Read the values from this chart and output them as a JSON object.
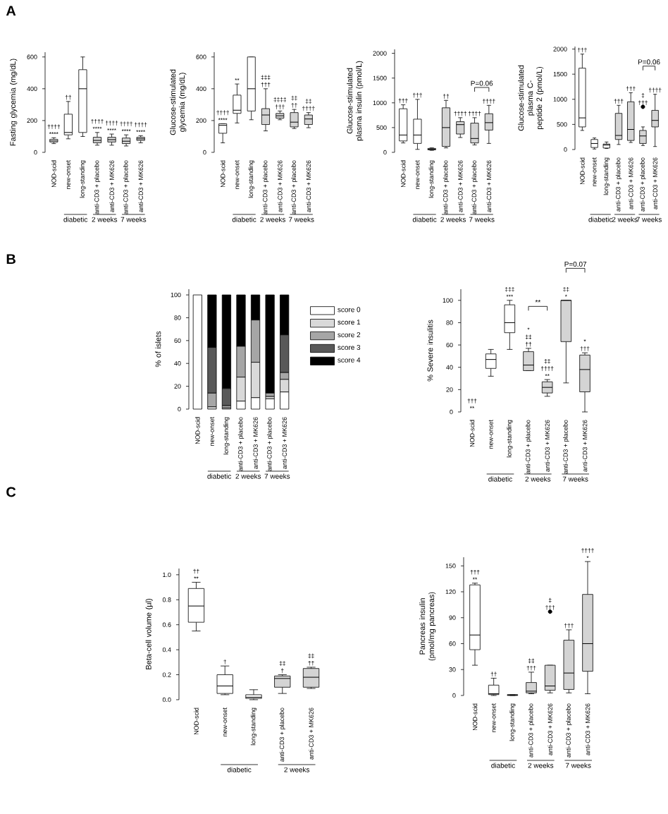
{
  "chart_data": [
    {
      "type": "box",
      "ylabel": "Fasting glycemia (mg/dL)",
      "categories": [
        "NOD-scid",
        "new-onset",
        "long-standing",
        "anti-CD3 + placebo",
        "anti-CD3 + MK626",
        "anti-CD3 + placebo",
        "anti-CD3 + MK626"
      ],
      "boxes": [
        {
          "low": 55,
          "q1": 65,
          "median": 72,
          "q3": 82,
          "high": 92
        },
        {
          "low": 85,
          "q1": 110,
          "median": 125,
          "q3": 240,
          "high": 320
        },
        {
          "low": 100,
          "q1": 125,
          "median": 400,
          "q3": 520,
          "high": 600
        },
        {
          "low": 45,
          "q1": 60,
          "median": 75,
          "q3": 95,
          "high": 125
        },
        {
          "low": 45,
          "q1": 65,
          "median": 80,
          "q3": 95,
          "high": 115
        },
        {
          "low": 40,
          "q1": 55,
          "median": 70,
          "q3": 90,
          "high": 110
        },
        {
          "low": 60,
          "q1": 75,
          "median": 85,
          "q3": 95,
          "high": 105
        }
      ],
      "colors": [
        "#ffffff",
        "#ffffff",
        "#ffffff",
        "#d4d4d4",
        "#d4d4d4",
        "#d4d4d4",
        "#d4d4d4"
      ],
      "value_labels": [
        "†††† ****",
        "††",
        null,
        "†††† ****",
        "†††† ****",
        "†††† ****",
        "†††† ****"
      ],
      "ylim": [
        0,
        630
      ],
      "yticks": [
        0,
        200,
        400,
        600
      ],
      "annotations": [
        "A",
        "diabetic",
        "2 weeks",
        "7 weeks"
      ]
    },
    {
      "type": "box",
      "ylabel": "Glucose-stimulated glycemia (mg/dL)",
      "categories": [
        "NOD-scid",
        "new-onset",
        "long-standing",
        "anti-CD3 + placebo",
        "anti-CD3 + MK626",
        "anti-CD3 + placebo",
        "anti-CD3 + MK626"
      ],
      "boxes": [
        {
          "low": 60,
          "q1": 120,
          "median": 170,
          "q3": 180,
          "high": 180
        },
        {
          "low": 185,
          "q1": 245,
          "median": 265,
          "q3": 360,
          "high": 430
        },
        {
          "low": 205,
          "q1": 260,
          "median": 400,
          "q3": 600,
          "high": 600
        },
        {
          "low": 135,
          "q1": 175,
          "median": 235,
          "q3": 275,
          "high": 400
        },
        {
          "low": 205,
          "q1": 215,
          "median": 230,
          "q3": 245,
          "high": 260
        },
        {
          "low": 150,
          "q1": 160,
          "median": 190,
          "q3": 250,
          "high": 270
        },
        {
          "low": 155,
          "q1": 175,
          "median": 210,
          "q3": 235,
          "high": 250
        }
      ],
      "colors": [
        "#ffffff",
        "#ffffff",
        "#ffffff",
        "#d4d4d4",
        "#d4d4d4",
        "#d4d4d4",
        "#d4d4d4"
      ],
      "value_labels": [
        "†††† ****",
        "**",
        null,
        "‡‡‡ †††",
        "‡‡‡‡ †††",
        "‡‡ ††",
        "‡‡ ††††"
      ],
      "ylim": [
        0,
        630
      ],
      "yticks": [
        0,
        200,
        400,
        600
      ],
      "annotations": [
        "diabetic",
        "2 weeks",
        "7 weeks"
      ]
    },
    {
      "type": "box",
      "ylabel": "Glucose-stimulated plasma insulin (pmol/L)",
      "categories": [
        "NOD-scid",
        "new-onset",
        "long-standing",
        "anti-CD3 + placebo",
        "anti-CD3 + MK626",
        "anti-CD3 + placebo",
        "anti-CD3 + MK626"
      ],
      "boxes": [
        {
          "low": 190,
          "q1": 230,
          "median": 350,
          "q3": 880,
          "high": 960
        },
        {
          "low": 60,
          "q1": 180,
          "median": 350,
          "q3": 670,
          "high": 1070
        },
        {
          "low": 40,
          "q1": 50,
          "median": 65,
          "q3": 80,
          "high": 90
        },
        {
          "low": 90,
          "q1": 120,
          "median": 500,
          "q3": 900,
          "high": 1050
        },
        {
          "low": 300,
          "q1": 370,
          "median": 560,
          "q3": 620,
          "high": 700
        },
        {
          "low": 150,
          "q1": 190,
          "median": 280,
          "q3": 590,
          "high": 700
        },
        {
          "low": 180,
          "q1": 450,
          "median": 600,
          "q3": 780,
          "high": 950
        }
      ],
      "colors": [
        "#ffffff",
        "#ffffff",
        "#ffffff",
        "#d4d4d4",
        "#d4d4d4",
        "#d4d4d4",
        "#d4d4d4"
      ],
      "value_labels": [
        "†††",
        "†††",
        null,
        "††",
        "††††",
        "††††",
        "††††"
      ],
      "ylim": [
        0,
        2080
      ],
      "yticks": [
        0,
        500,
        1000,
        1500,
        2000
      ],
      "annotations": [
        "diabetic",
        "2 weeks",
        "7 weeks",
        "P=0.06"
      ]
    },
    {
      "type": "box",
      "ylabel": "Glucose-stimulated plasma C-peptide 2 (pmol/L)",
      "categories": [
        "NOD-scid",
        "new-onset",
        "long-standing",
        "anti-CD3 + placebo",
        "anti-CD3 + MK626",
        "anti-CD3 + placebo",
        "anti-CD3 + MK626"
      ],
      "boxes": [
        {
          "low": 380,
          "q1": 450,
          "median": 630,
          "q3": 1620,
          "high": 1900
        },
        {
          "low": 10,
          "q1": 40,
          "median": 120,
          "q3": 200,
          "high": 230
        },
        {
          "low": 20,
          "q1": 30,
          "median": 90,
          "q3": 110,
          "high": 150
        },
        {
          "low": 100,
          "q1": 200,
          "median": 280,
          "q3": 720,
          "high": 880
        },
        {
          "low": 140,
          "q1": 180,
          "median": 400,
          "q3": 950,
          "high": 1130
        },
        {
          "low": 80,
          "q1": 120,
          "median": 270,
          "q3": 380,
          "high": 450,
          "outliers": [
            850
          ]
        },
        {
          "low": 60,
          "q1": 450,
          "median": 580,
          "q3": 780,
          "high": 1100
        }
      ],
      "colors": [
        "#ffffff",
        "#ffffff",
        "#ffffff",
        "#d4d4d4",
        "#d4d4d4",
        "#d4d4d4",
        "#d4d4d4"
      ],
      "value_labels": [
        "†††",
        null,
        null,
        "†††",
        "†††",
        "‡ †††",
        "††††"
      ],
      "ylim": [
        0,
        2050
      ],
      "yticks": [
        0,
        500,
        1000,
        1500,
        2000
      ],
      "annotations": [
        "diabetic",
        "2 weeks",
        "7 weeks",
        "P=0.06"
      ]
    },
    {
      "type": "bar",
      "stacked": true,
      "ylabel": "% of islets",
      "categories": [
        "NOD-scid",
        "new-onset",
        "long-standing",
        "anti-CD3 + placebo",
        "anti-CD3 + MK626",
        "anti-CD3 + placebo",
        "anti-CD3 + MK626"
      ],
      "series": [
        {
          "name": "score 0",
          "color": "#ffffff",
          "values": [
            100,
            0,
            0,
            7,
            10,
            9,
            15
          ]
        },
        {
          "name": "score 1",
          "color": "#d9d9d9",
          "values": [
            0,
            2,
            1,
            21,
            31,
            2,
            11
          ]
        },
        {
          "name": "score 2",
          "color": "#a6a6a6",
          "values": [
            0,
            12,
            2,
            27,
            37,
            3,
            6
          ]
        },
        {
          "name": "score 3",
          "color": "#595959",
          "values": [
            0,
            40,
            15,
            0,
            0,
            0,
            33
          ]
        },
        {
          "name": "score 4",
          "color": "#000000",
          "values": [
            0,
            46,
            82,
            45,
            22,
            86,
            35
          ]
        }
      ],
      "legend": "right",
      "ylim": [
        0,
        105
      ],
      "yticks": [
        0,
        20,
        40,
        60,
        80,
        100
      ],
      "annotations": [
        "B",
        "diabetic",
        "2 weeks",
        "7 weeks"
      ]
    },
    {
      "type": "box",
      "ylabel": "% Severe insulitis",
      "categories": [
        "NOD-scid",
        "new-onset",
        "long-standing",
        "anti-CD3 + placebo",
        "anti-CD3 + MK626",
        "anti-CD3 + placebo",
        "anti-CD3 + MK626"
      ],
      "boxes": [
        null,
        {
          "low": 32,
          "q1": 39,
          "median": 47,
          "q3": 52,
          "high": 56
        },
        {
          "low": 56,
          "q1": 71,
          "median": 80,
          "q3": 96,
          "high": 100
        },
        {
          "low": 37,
          "q1": 37,
          "median": 42,
          "q3": 54,
          "high": 57
        },
        {
          "low": 14,
          "q1": 17,
          "median": 22,
          "q3": 27,
          "high": 29
        },
        {
          "low": 26,
          "q1": 63,
          "median": 100,
          "q3": 100,
          "high": 100
        },
        {
          "low": 0,
          "q1": 18,
          "median": 38,
          "q3": 51,
          "high": 53
        }
      ],
      "colors": [
        "#ffffff",
        "#ffffff",
        "#ffffff",
        "#d4d4d4",
        "#d4d4d4",
        "#d4d4d4",
        "#d4d4d4"
      ],
      "value_labels": [
        "††† **",
        null,
        "‡‡‡ ***",
        "* ‡‡ ††",
        "‡‡ †††† **",
        "‡‡ *",
        "* †††"
      ],
      "ylim": [
        0,
        110
      ],
      "yticks": [
        0,
        20,
        40,
        60,
        80,
        100
      ],
      "annotations": [
        "diabetic",
        "2 weeks",
        "7 weeks",
        "**",
        "P=0.07"
      ]
    },
    {
      "type": "box",
      "ylabel": "Beta-cell volume (µl)",
      "categories": [
        "NOD-scid",
        "new-onset",
        "long-standing",
        "anti-CD3 + placebo",
        "anti-CD3 + MK626"
      ],
      "boxes": [
        {
          "low": 0.55,
          "q1": 0.62,
          "median": 0.75,
          "q3": 0.89,
          "high": 0.94
        },
        {
          "low": 0.04,
          "q1": 0.05,
          "median": 0.11,
          "q3": 0.2,
          "high": 0.27
        },
        {
          "low": 0.0,
          "q1": 0.01,
          "median": 0.02,
          "q3": 0.04,
          "high": 0.08
        },
        {
          "low": 0.05,
          "q1": 0.1,
          "median": 0.17,
          "q3": 0.19,
          "high": 0.2
        },
        {
          "low": 0.09,
          "q1": 0.1,
          "median": 0.18,
          "q3": 0.25,
          "high": 0.26
        }
      ],
      "colors": [
        "#ffffff",
        "#ffffff",
        "#ffffff",
        "#d4d4d4",
        "#d4d4d4"
      ],
      "value_labels": [
        "†† **",
        "†",
        null,
        "‡‡ †",
        "‡‡ ††"
      ],
      "ylim": [
        0,
        1.05
      ],
      "yticks": [
        {
          "value": 0,
          "label": "0.0"
        },
        0.2,
        0.4,
        0.6,
        0.8,
        {
          "value": 1,
          "label": "1.0"
        }
      ],
      "annotations": [
        "C",
        "diabetic",
        "2 weeks"
      ]
    },
    {
      "type": "box",
      "ylabel": "Pancreas insulin (pmol/mg pancreas)",
      "categories": [
        "NOD-scid",
        "new-onset",
        "long-standing",
        "anti-CD3 + placebo",
        "anti-CD3 + MK626",
        "anti-CD3 + placebo",
        "anti-CD3 + MK626"
      ],
      "boxes": [
        {
          "low": 35,
          "q1": 53,
          "median": 70,
          "q3": 128,
          "high": 130
        },
        {
          "low": 0,
          "q1": 1,
          "median": 2,
          "q3": 12,
          "high": 20
        },
        {
          "low": 0,
          "q1": 0,
          "median": 0.5,
          "q3": 1,
          "high": 1
        },
        {
          "low": 2,
          "q1": 3,
          "median": 5,
          "q3": 15,
          "high": 27
        },
        {
          "low": 3,
          "q1": 6,
          "median": 11,
          "q3": 35,
          "high": 35,
          "outliers": [
            97
          ]
        },
        {
          "low": 3,
          "q1": 7,
          "median": 26,
          "q3": 64,
          "high": 76
        },
        {
          "low": 2,
          "q1": 28,
          "median": 60,
          "q3": 117,
          "high": 155
        }
      ],
      "colors": [
        "#ffffff",
        "#ffffff",
        "#ffffff",
        "#d4d4d4",
        "#d4d4d4",
        "#d4d4d4",
        "#d4d4d4"
      ],
      "value_labels": [
        "††† **",
        "††",
        null,
        "‡‡ †††",
        "‡ †††",
        "†††",
        "†††† *"
      ],
      "ylim": [
        0,
        160
      ],
      "yticks": [
        0,
        30,
        60,
        90,
        120,
        150
      ],
      "annotations": [
        "diabetic",
        "2 weeks",
        "7 weeks"
      ]
    }
  ]
}
